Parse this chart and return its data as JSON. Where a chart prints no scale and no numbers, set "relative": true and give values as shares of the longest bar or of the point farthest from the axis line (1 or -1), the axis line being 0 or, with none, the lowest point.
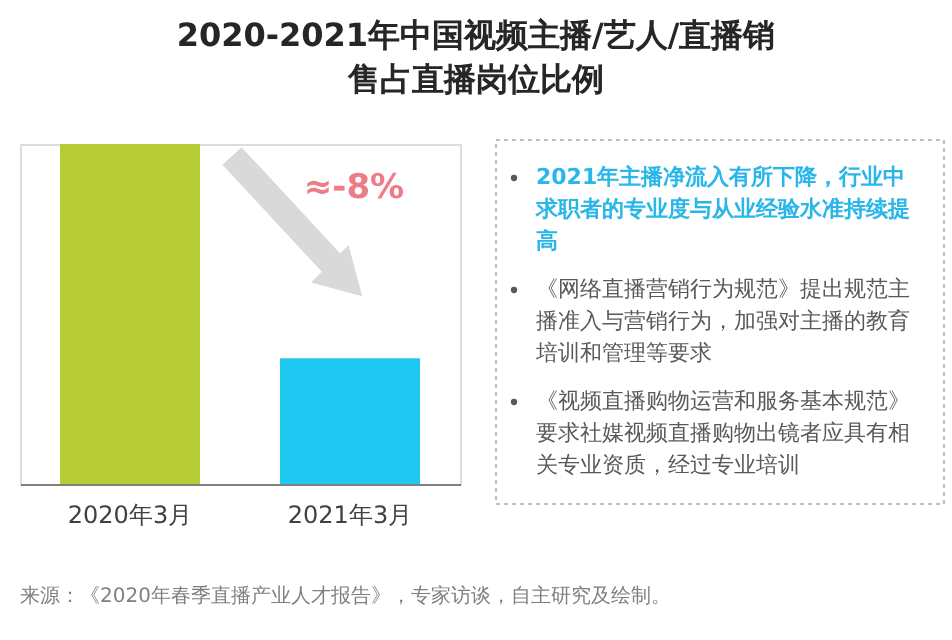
{
  "chart_data": {
    "type": "bar",
    "title": "2020-2021年中国视频主播/艺人/直播销售占直播岗位比例",
    "categories": [
      "2020年3月",
      "2021年3月"
    ],
    "relative": true,
    "colors": [
      "#b5cc34",
      "#1ec8f0"
    ],
    "values": [
      1,
      0.37
    ],
    "annotations": [
      "≈-8%",
      "2021年主播净流入有所下降，行业中求职者的专业度与从业经验水准持续提高",
      "《网络直播营销行为规范》提出规范主播准入与营销行为，加强对主播的教育培训和管理等要求",
      "《视频直播购物运营和服务基本规范》要求社媒视频直播购物出镜者应具有相关专业资质，经过专业培训",
      "来源：《2020年春季直播产业人才报告》，专家访谈，自主研究及绘制。"
    ]
  }
}
